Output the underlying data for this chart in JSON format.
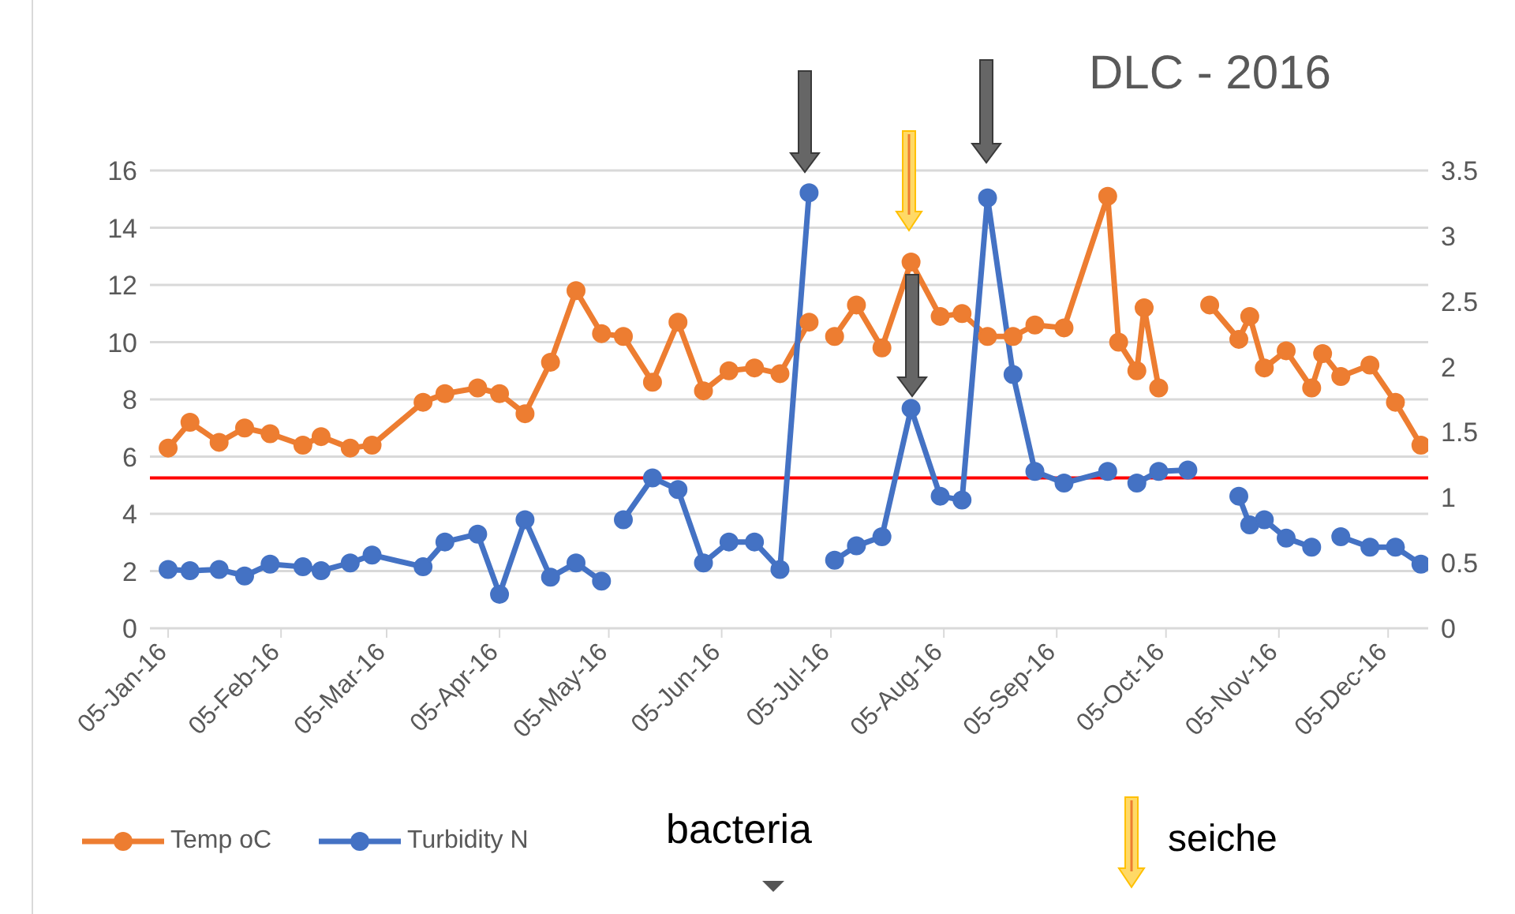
{
  "chart_data": {
    "type": "line",
    "title": "DLC - 2016",
    "xlim": [
      "2015-12-31",
      "2016-12-16"
    ],
    "xticks": [
      {
        "value": "2016-01-05",
        "label": "05-Jan-16"
      },
      {
        "value": "2016-02-05",
        "label": "05-Feb-16"
      },
      {
        "value": "2016-03-05",
        "label": "05-Mar-16"
      },
      {
        "value": "2016-04-05",
        "label": "05-Apr-16"
      },
      {
        "value": "2016-05-05",
        "label": "05-May-16"
      },
      {
        "value": "2016-06-05",
        "label": "05-Jun-16"
      },
      {
        "value": "2016-07-05",
        "label": "05-Jul-16"
      },
      {
        "value": "2016-08-05",
        "label": "05-Aug-16"
      },
      {
        "value": "2016-09-05",
        "label": "05-Sep-16"
      },
      {
        "value": "2016-10-05",
        "label": "05-Oct-16"
      },
      {
        "value": "2016-11-05",
        "label": "05-Nov-16"
      },
      {
        "value": "2016-12-05",
        "label": "05-Dec-16"
      }
    ],
    "ylim": [
      0,
      16
    ],
    "yticks": [
      0,
      2,
      4,
      6,
      8,
      10,
      12,
      14,
      16
    ],
    "y2lim": [
      0,
      3.5
    ],
    "y2ticks": [
      0,
      0.5,
      1,
      1.5,
      2,
      2.5,
      3,
      3.5
    ],
    "grid": "y",
    "legend": "bottom left",
    "marker": "circle",
    "line_style": "solid",
    "series": [
      {
        "name": "Temp   oC",
        "color": "#ed7d31",
        "x": [
          "2016-01-05",
          "2016-01-11",
          "2016-01-19",
          "2016-01-26",
          "2016-02-02",
          "2016-02-11",
          "2016-02-16",
          "2016-02-24",
          "2016-03-01",
          "2016-03-15",
          "2016-03-21",
          "2016-03-30",
          "2016-04-05",
          "2016-04-12",
          "2016-04-19",
          "2016-04-26",
          "2016-05-03",
          "2016-05-09",
          "2016-05-17",
          "2016-05-24",
          "2016-05-31",
          "2016-06-07",
          "2016-06-14",
          "2016-06-21",
          "2016-06-29",
          "2016-07-03",
          "2016-07-06",
          "2016-07-12",
          "2016-07-19",
          "2016-07-27",
          "2016-08-04",
          "2016-08-10",
          "2016-08-17",
          "2016-08-24",
          "2016-08-30",
          "2016-09-07",
          "2016-09-19",
          "2016-09-22",
          "2016-09-27",
          "2016-09-29",
          "2016-10-03",
          "2016-10-10",
          "2016-10-17",
          "2016-10-25",
          "2016-10-28",
          "2016-11-01",
          "2016-11-07",
          "2016-11-14",
          "2016-11-17",
          "2016-11-22",
          "2016-11-30",
          "2016-12-07",
          "2016-12-14"
        ],
        "values": [
          6.3,
          7.2,
          6.5,
          7.0,
          6.8,
          6.4,
          6.7,
          6.3,
          6.4,
          7.9,
          8.2,
          8.4,
          8.2,
          7.5,
          9.3,
          11.8,
          10.3,
          10.2,
          8.6,
          10.7,
          8.3,
          9.0,
          9.1,
          8.9,
          10.7,
          null,
          10.2,
          11.3,
          9.8,
          12.8,
          10.9,
          11.0,
          10.2,
          10.2,
          10.6,
          10.5,
          15.1,
          10.0,
          9.0,
          11.2,
          8.4,
          null,
          11.3,
          10.1,
          10.9,
          9.1,
          9.7,
          8.4,
          9.6,
          8.8,
          9.2,
          7.9,
          6.4
        ]
      },
      {
        "name": "Turbidity N",
        "color": "#4472c4",
        "axis": "y2",
        "x": [
          "2016-01-05",
          "2016-01-11",
          "2016-01-19",
          "2016-01-26",
          "2016-02-02",
          "2016-02-11",
          "2016-02-16",
          "2016-02-24",
          "2016-03-01",
          "2016-03-15",
          "2016-03-21",
          "2016-03-30",
          "2016-04-05",
          "2016-04-12",
          "2016-04-19",
          "2016-04-26",
          "2016-05-03",
          "2016-05-06",
          "2016-05-09",
          "2016-05-17",
          "2016-05-24",
          "2016-05-31",
          "2016-06-07",
          "2016-06-14",
          "2016-06-21",
          "2016-06-29",
          "2016-07-03",
          "2016-07-06",
          "2016-07-12",
          "2016-07-19",
          "2016-07-27",
          "2016-08-04",
          "2016-08-10",
          "2016-08-17",
          "2016-08-24",
          "2016-08-30",
          "2016-09-07",
          "2016-09-19",
          "2016-09-22",
          "2016-09-27",
          "2016-10-03",
          "2016-10-11",
          "2016-10-17",
          "2016-10-25",
          "2016-10-28",
          "2016-11-01",
          "2016-11-07",
          "2016-11-14",
          "2016-11-17",
          "2016-11-22",
          "2016-11-30",
          "2016-12-07",
          "2016-12-14"
        ],
        "values": [
          0.45,
          0.44,
          0.45,
          0.4,
          0.49,
          0.47,
          0.44,
          0.5,
          0.56,
          0.47,
          0.66,
          0.72,
          0.26,
          0.83,
          0.39,
          0.5,
          0.36,
          null,
          0.83,
          1.15,
          1.06,
          0.5,
          0.66,
          0.66,
          0.45,
          3.33,
          null,
          0.52,
          0.63,
          0.7,
          1.68,
          1.01,
          0.98,
          3.29,
          1.94,
          1.2,
          1.11,
          1.2,
          null,
          1.11,
          1.2,
          1.21,
          null,
          1.01,
          0.79,
          0.83,
          0.69,
          0.62,
          null,
          0.7,
          0.62,
          0.62,
          0.49
        ]
      }
    ],
    "ref_lines": [
      {
        "axis": "y2",
        "value": 1.15,
        "color": "#ff0000"
      }
    ],
    "annotations": [
      "bacteria",
      "seiche"
    ]
  }
}
